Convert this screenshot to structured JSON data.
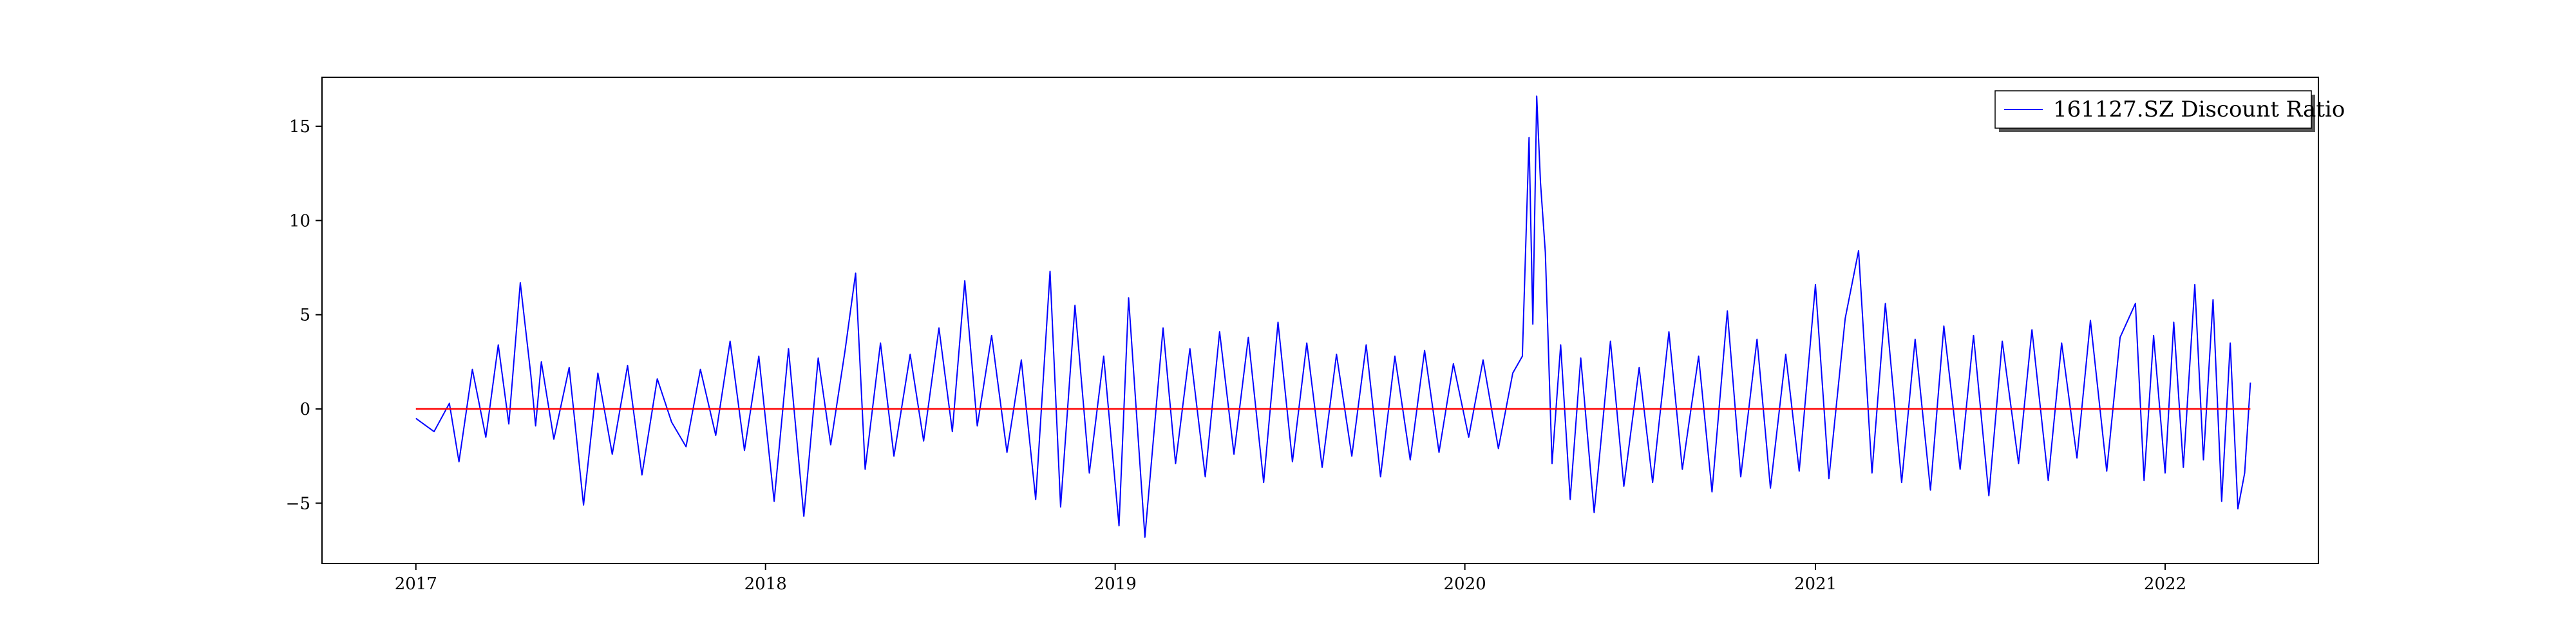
{
  "chart_data": {
    "type": "line",
    "title": "",
    "xlabel": "",
    "ylabel": "",
    "x_range": [
      "2016-09-25",
      "2022-06-10"
    ],
    "ylim": [
      -8.2,
      17.6
    ],
    "x_ticks": [
      {
        "date": "2017-01-01",
        "label": "2017"
      },
      {
        "date": "2018-01-01",
        "label": "2018"
      },
      {
        "date": "2019-01-01",
        "label": "2019"
      },
      {
        "date": "2020-01-01",
        "label": "2020"
      },
      {
        "date": "2021-01-01",
        "label": "2021"
      },
      {
        "date": "2022-01-01",
        "label": "2022"
      }
    ],
    "y_ticks": [
      {
        "value": -5,
        "label": "−5"
      },
      {
        "value": 0,
        "label": "0"
      },
      {
        "value": 5,
        "label": "5"
      },
      {
        "value": 10,
        "label": "10"
      },
      {
        "value": 15,
        "label": "15"
      }
    ],
    "grid": false,
    "legend_position": "top-right",
    "colors": {
      "series": "#0000ff",
      "reference": "#ff0000",
      "axes": "#000000"
    },
    "series": [
      {
        "name": "161127.SZ Discount Ratio",
        "x": [
          "2017-01-01",
          "2017-01-20",
          "2017-02-05",
          "2017-02-15",
          "2017-03-01",
          "2017-03-15",
          "2017-03-28",
          "2017-04-08",
          "2017-04-20",
          "2017-05-01",
          "2017-05-06",
          "2017-05-12",
          "2017-05-25",
          "2017-06-10",
          "2017-06-25",
          "2017-07-10",
          "2017-07-25",
          "2017-08-10",
          "2017-08-25",
          "2017-09-10",
          "2017-09-25",
          "2017-10-10",
          "2017-10-25",
          "2017-11-10",
          "2017-11-25",
          "2017-12-10",
          "2017-12-25",
          "2018-01-10",
          "2018-01-25",
          "2018-02-10",
          "2018-02-25",
          "2018-03-10",
          "2018-03-25",
          "2018-04-05",
          "2018-04-15",
          "2018-05-01",
          "2018-05-15",
          "2018-06-01",
          "2018-06-15",
          "2018-07-01",
          "2018-07-15",
          "2018-07-28",
          "2018-08-10",
          "2018-08-25",
          "2018-09-10",
          "2018-09-25",
          "2018-10-10",
          "2018-10-25",
          "2018-11-05",
          "2018-11-20",
          "2018-12-05",
          "2018-12-20",
          "2019-01-05",
          "2019-01-15",
          "2019-02-01",
          "2019-02-20",
          "2019-03-05",
          "2019-03-20",
          "2019-04-05",
          "2019-04-20",
          "2019-05-05",
          "2019-05-20",
          "2019-06-05",
          "2019-06-20",
          "2019-07-05",
          "2019-07-20",
          "2019-08-05",
          "2019-08-20",
          "2019-09-05",
          "2019-09-20",
          "2019-10-05",
          "2019-10-20",
          "2019-11-05",
          "2019-11-20",
          "2019-12-05",
          "2019-12-20",
          "2020-01-05",
          "2020-01-20",
          "2020-02-05",
          "2020-02-20",
          "2020-03-01",
          "2020-03-08",
          "2020-03-12",
          "2020-03-16",
          "2020-03-20",
          "2020-03-25",
          "2020-04-01",
          "2020-04-10",
          "2020-04-20",
          "2020-05-01",
          "2020-05-15",
          "2020-06-01",
          "2020-06-15",
          "2020-07-01",
          "2020-07-15",
          "2020-08-01",
          "2020-08-15",
          "2020-09-01",
          "2020-09-15",
          "2020-10-01",
          "2020-10-15",
          "2020-11-01",
          "2020-11-15",
          "2020-12-01",
          "2020-12-15",
          "2021-01-01",
          "2021-01-15",
          "2021-02-01",
          "2021-02-15",
          "2021-03-01",
          "2021-03-15",
          "2021-04-01",
          "2021-04-15",
          "2021-05-01",
          "2021-05-15",
          "2021-06-01",
          "2021-06-15",
          "2021-07-01",
          "2021-07-15",
          "2021-08-01",
          "2021-08-15",
          "2021-09-01",
          "2021-09-15",
          "2021-10-01",
          "2021-10-15",
          "2021-11-01",
          "2021-11-15",
          "2021-12-01",
          "2021-12-10",
          "2021-12-20",
          "2022-01-01",
          "2022-01-10",
          "2022-01-20",
          "2022-02-01",
          "2022-02-10",
          "2022-02-20",
          "2022-03-01",
          "2022-03-10",
          "2022-03-18",
          "2022-03-25",
          "2022-03-31"
        ],
        "y": [
          -0.5,
          -1.2,
          0.3,
          -2.8,
          2.1,
          -1.5,
          3.4,
          -0.8,
          6.7,
          1.8,
          -0.9,
          2.5,
          -1.6,
          2.2,
          -5.1,
          1.9,
          -2.4,
          2.3,
          -3.5,
          1.6,
          -0.7,
          -2.0,
          2.1,
          -1.4,
          3.6,
          -2.2,
          2.8,
          -4.9,
          3.2,
          -5.7,
          2.7,
          -1.9,
          3.1,
          7.2,
          -3.2,
          3.5,
          -2.5,
          2.9,
          -1.7,
          4.3,
          -1.2,
          6.8,
          -0.9,
          3.9,
          -2.3,
          2.6,
          -4.8,
          7.3,
          -5.2,
          5.5,
          -3.4,
          2.8,
          -6.2,
          5.9,
          -6.8,
          4.3,
          -2.9,
          3.2,
          -3.6,
          4.1,
          -2.4,
          3.8,
          -3.9,
          4.6,
          -2.8,
          3.5,
          -3.1,
          2.9,
          -2.5,
          3.4,
          -3.6,
          2.8,
          -2.7,
          3.1,
          -2.3,
          2.4,
          -1.5,
          2.6,
          -2.1,
          1.9,
          2.8,
          14.4,
          4.5,
          16.6,
          12.0,
          8.3,
          -2.9,
          3.4,
          -4.8,
          2.7,
          -5.5,
          3.6,
          -4.1,
          2.2,
          -3.9,
          4.1,
          -3.2,
          2.8,
          -4.4,
          5.2,
          -3.6,
          3.7,
          -4.2,
          2.9,
          -3.3,
          6.6,
          -3.7,
          4.8,
          8.4,
          -3.4,
          5.6,
          -3.9,
          3.7,
          -4.3,
          4.4,
          -3.2,
          3.9,
          -4.6,
          3.6,
          -2.9,
          4.2,
          -3.8,
          3.5,
          -2.6,
          4.7,
          -3.3,
          3.8,
          5.6,
          -3.8,
          3.9,
          -3.4,
          4.6,
          -3.1,
          6.6,
          -2.7,
          5.8,
          -4.9,
          3.5,
          -5.3,
          -3.4,
          1.4
        ]
      }
    ],
    "reference_line": {
      "y": 0
    }
  },
  "legend": {
    "label": "161127.SZ Discount Ratio"
  }
}
